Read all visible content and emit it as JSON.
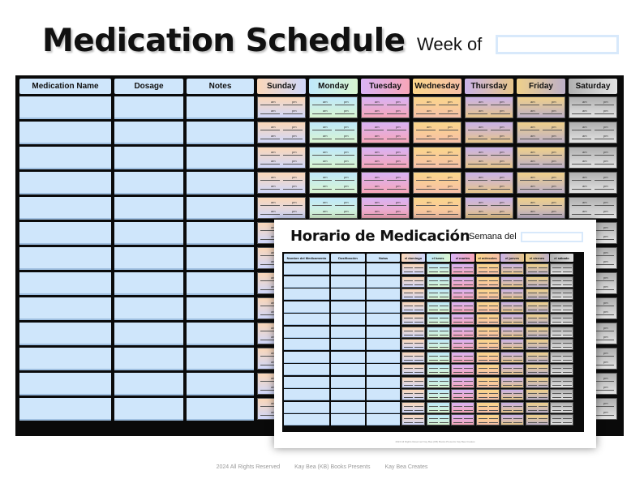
{
  "english": {
    "title": "Medication Schedule",
    "week_label": "Week of",
    "columns": [
      "Medication Name",
      "Dosage",
      "Notes"
    ],
    "days": [
      {
        "label": "Sunday",
        "color_top": "#fbd7b8",
        "color_bottom": "#cfd7fb"
      },
      {
        "label": "Monday",
        "color_top": "#bfe8fb",
        "color_bottom": "#d8f5d0"
      },
      {
        "label": "Tuesday",
        "color_top": "#d9b3f5",
        "color_bottom": "#f7a6b8"
      },
      {
        "label": "Wednesday",
        "color_top": "#fbd68a",
        "color_bottom": "#f7c0a8"
      },
      {
        "label": "Thursday",
        "color_top": "#c9b2e8",
        "color_bottom": "#e6c58a"
      },
      {
        "label": "Friday",
        "color_top": "#efd08a",
        "color_bottom": "#bdb0c8"
      },
      {
        "label": "Saturday",
        "color_top": "#b0b0b0",
        "color_bottom": "#e3e3e3"
      }
    ],
    "am_label": "am",
    "pm_label": "pm"
  },
  "spanish": {
    "title": "Horario de Medicación",
    "week_label": "Semana del",
    "columns": [
      "Nombre del Medicamento",
      "Dosificación",
      "Notas"
    ],
    "days": [
      "el domingo",
      "el lunes",
      "el martes",
      "el miércoles",
      "el jueves",
      "el viernes",
      "el sábado"
    ],
    "footer": "2024  All Rights Reserved    Kay Bea (KB) Books Presents    Kay Bea Creates"
  },
  "footer": {
    "copyright": "2024   All Rights Reserved",
    "presents": "Kay Bea (KB) Books  Presents",
    "creates": "Kay Bea Creates"
  }
}
